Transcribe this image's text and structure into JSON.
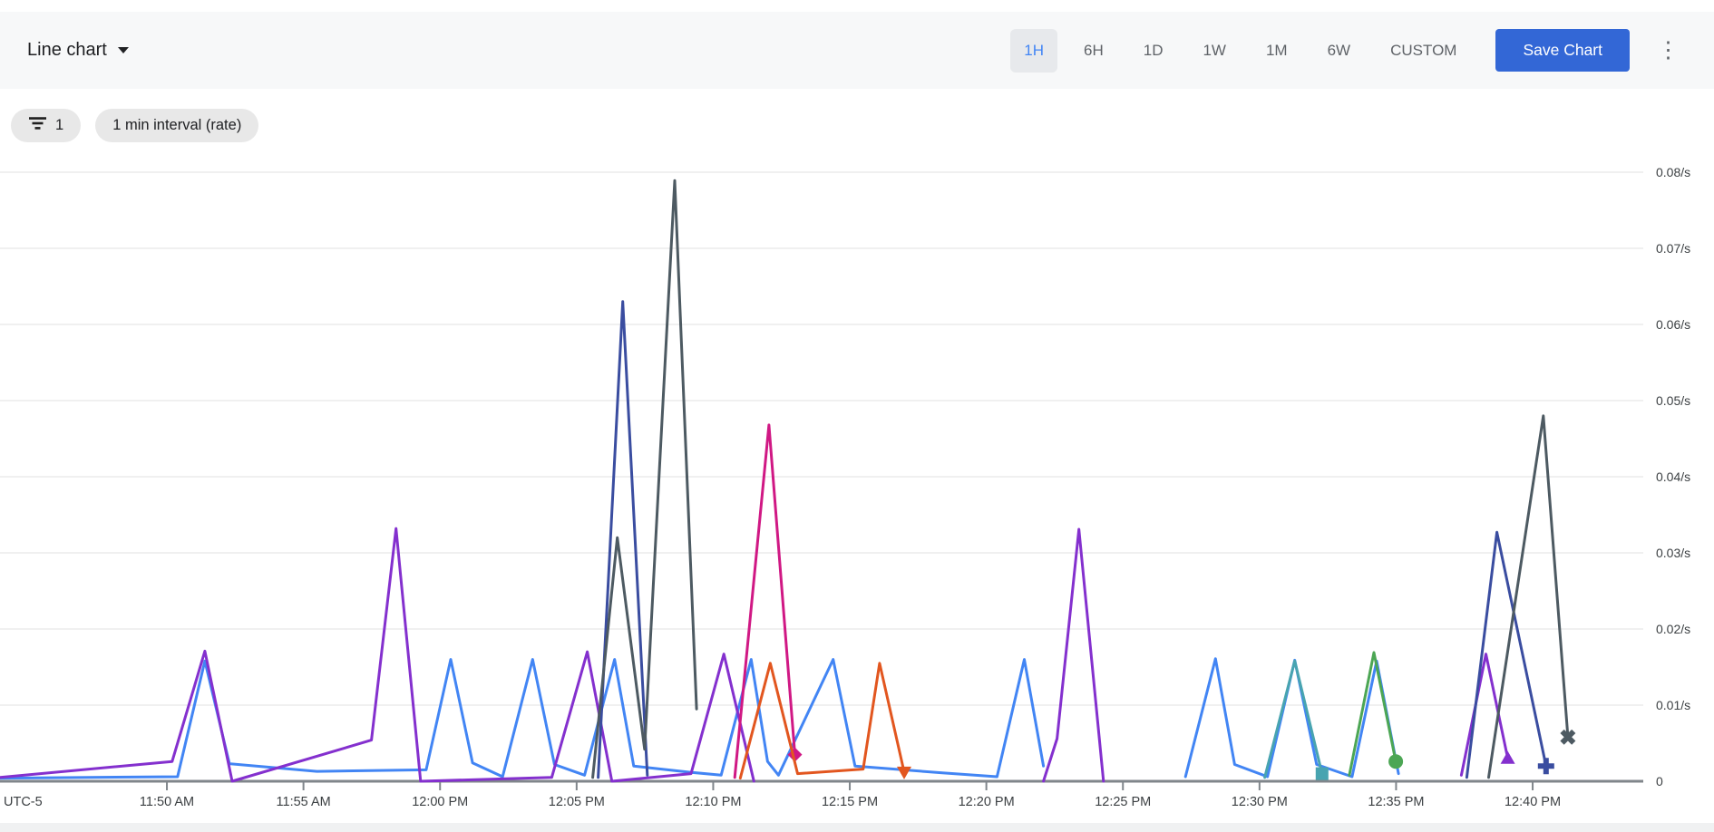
{
  "header": {
    "chart_type_label": "Line chart",
    "time_ranges": [
      {
        "label": "1H",
        "selected": true
      },
      {
        "label": "6H",
        "selected": false
      },
      {
        "label": "1D",
        "selected": false
      },
      {
        "label": "1W",
        "selected": false
      },
      {
        "label": "1M",
        "selected": false
      },
      {
        "label": "6W",
        "selected": false
      },
      {
        "label": "CUSTOM",
        "selected": false
      }
    ],
    "save_button_label": "Save Chart",
    "more_icon": "⋮",
    "selected_color": "#4285f4",
    "save_button_color": "#3367d6"
  },
  "filters": {
    "filter_chip_count": "1",
    "interval_chip_label": "1 min interval (rate)"
  },
  "chart_data": {
    "type": "line",
    "title": "",
    "legend_position": "none",
    "grid": true,
    "y_axis": {
      "unit": "/s",
      "min": 0,
      "max": 0.08,
      "tick_step": 0.01,
      "tick_labels": [
        "0.08/s",
        "0.07/s",
        "0.06/s",
        "0.05/s",
        "0.04/s",
        "0.03/s",
        "0.02/s",
        "0.01/s",
        "0"
      ]
    },
    "x_axis": {
      "timezone_label": "UTC-5",
      "tick_labels": [
        "11:50 AM",
        "11:55 AM",
        "12:00 PM",
        "12:05 PM",
        "12:10 PM",
        "12:15 PM",
        "12:20 PM",
        "12:25 PM",
        "12:30 PM",
        "12:35 PM",
        "12:40 PM"
      ],
      "first_tick_offset_min": 6.11,
      "tick_interval_min": 5,
      "total_span_min": 60.2
    },
    "series": [
      {
        "name": "blue",
        "color": "#4285f4",
        "marker": "none",
        "segments": [
          [
            [
              0,
              0.0004
            ],
            [
              6.5,
              0.0006
            ],
            [
              7.5,
              0.0158
            ],
            [
              8.4,
              0.0023
            ],
            [
              11.6,
              0.0013
            ],
            [
              15.6,
              0.0015
            ],
            [
              16.5,
              0.016
            ],
            [
              17.3,
              0.0024
            ],
            [
              18.4,
              0.0006
            ],
            [
              19.5,
              0.016
            ],
            [
              20.3,
              0.0022
            ],
            [
              21.4,
              0.0008
            ],
            [
              22.5,
              0.016
            ],
            [
              23.2,
              0.002
            ],
            [
              25.2,
              0.0012
            ],
            [
              26.4,
              0.0008
            ],
            [
              27.5,
              0.016
            ],
            [
              28.1,
              0.0026
            ],
            [
              28.5,
              0.0008
            ],
            [
              30.5,
              0.016
            ],
            [
              31.3,
              0.002
            ],
            [
              34.5,
              0.0011
            ],
            [
              36.5,
              0.0006
            ],
            [
              37.5,
              0.016
            ],
            [
              38.2,
              0.002
            ]
          ],
          [
            [
              43.4,
              0.0006
            ],
            [
              44.5,
              0.0161
            ],
            [
              45.2,
              0.0022
            ],
            [
              46.4,
              0.0006
            ],
            [
              47.4,
              0.0159
            ],
            [
              48.2,
              0.0022
            ],
            [
              49.5,
              0.0006
            ],
            [
              50.4,
              0.0158
            ],
            [
              51.2,
              0.001
            ]
          ]
        ]
      },
      {
        "name": "purple",
        "color": "#8430ce",
        "marker": "triangle-up",
        "segments": [
          [
            [
              0,
              0.0005
            ],
            [
              6.3,
              0.0026
            ],
            [
              7.5,
              0.0171
            ],
            [
              8.5,
              0
            ],
            [
              13.6,
              0.0054
            ],
            [
              14.5,
              0.0332
            ],
            [
              15.4,
              0
            ],
            [
              20.2,
              0.0005
            ],
            [
              21.5,
              0.017
            ],
            [
              22.4,
              0
            ],
            [
              25.3,
              0.001
            ],
            [
              26.5,
              0.0167
            ],
            [
              27.6,
              0
            ]
          ],
          [
            [
              38.2,
              0
            ],
            [
              38.7,
              0.0056
            ],
            [
              39.5,
              0.0331
            ],
            [
              40.4,
              0
            ]
          ],
          [
            [
              53.5,
              0.0008
            ],
            [
              54.4,
              0.0167
            ],
            [
              55.2,
              0.003
            ]
          ]
        ]
      },
      {
        "name": "navy",
        "color": "#3a4da0",
        "marker": "plus",
        "segments": [
          [
            [
              21.9,
              0.0005
            ],
            [
              22.8,
              0.063
            ],
            [
              23.7,
              0.0008
            ]
          ],
          [
            [
              53.7,
              0.0005
            ],
            [
              54.8,
              0.0327
            ],
            [
              56.6,
              0.002
            ]
          ]
        ]
      },
      {
        "name": "slate",
        "color": "#4d5a62",
        "marker": "x",
        "segments": [
          [
            [
              21.7,
              0.0005
            ],
            [
              22.6,
              0.032
            ],
            [
              23.6,
              0.0042
            ],
            [
              24.7,
              0.0789
            ],
            [
              25.5,
              0.0095
            ]
          ],
          [
            [
              54.5,
              0.0005
            ],
            [
              56.5,
              0.048
            ],
            [
              57.4,
              0.0058
            ]
          ]
        ]
      },
      {
        "name": "pink",
        "color": "#d01884",
        "marker": "diamond",
        "segments": [
          [
            [
              26.9,
              0.0005
            ],
            [
              28.15,
              0.0468
            ],
            [
              29.1,
              0.0035
            ]
          ]
        ]
      },
      {
        "name": "orange",
        "color": "#e2561f",
        "marker": "triangle-down",
        "segments": [
          [
            [
              27.1,
              0.0004
            ],
            [
              28.2,
              0.0155
            ],
            [
              29.2,
              0.001
            ],
            [
              31.6,
              0.0016
            ],
            [
              32.2,
              0.0155
            ],
            [
              33.1,
              0.0012
            ]
          ]
        ]
      },
      {
        "name": "teal",
        "color": "#48a4b0",
        "marker": "square",
        "segments": [
          [
            [
              46.3,
              0.0005
            ],
            [
              47.4,
              0.0158
            ],
            [
              48.4,
              0.001
            ]
          ]
        ]
      },
      {
        "name": "green",
        "color": "#4ca654",
        "marker": "circle",
        "segments": [
          [
            [
              49.4,
              0.0008
            ],
            [
              50.3,
              0.0169
            ],
            [
              51.1,
              0.0026
            ]
          ]
        ]
      }
    ]
  }
}
